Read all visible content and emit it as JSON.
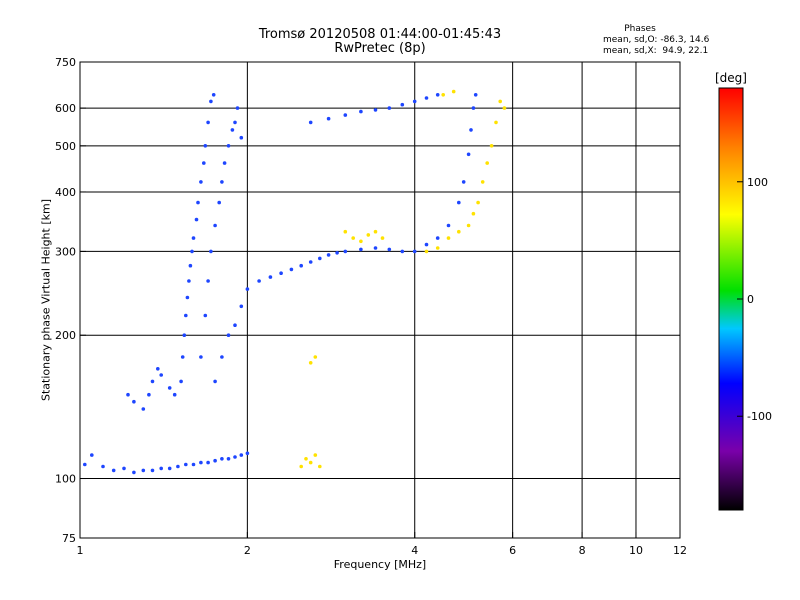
{
  "title": "Tromsø 20120508 01:44:00-01:45:43",
  "subtitle": "RwPretec (8p)",
  "phases": {
    "heading": "Phases",
    "o_line": "mean, sd,O: -86.3, 14.6",
    "x_line": "mean, sd,X:  94.9, 22.1"
  },
  "chart_data": {
    "type": "scatter",
    "title": "Tromsø 20120508 01:44:00-01:45:43",
    "subtitle": "RwPretec (8p)",
    "xlabel": "Frequency [MHz]",
    "ylabel": "Stationary phase Virtual Height [km]",
    "xscale": "log",
    "yscale": "log",
    "xlim": [
      1,
      12
    ],
    "ylim": [
      75,
      750
    ],
    "xticks": [
      1,
      2,
      4,
      6,
      8,
      10,
      12
    ],
    "yticks": [
      75,
      100,
      200,
      300,
      400,
      500,
      600,
      750
    ],
    "grid_x": [
      2,
      4,
      6,
      8,
      10
    ],
    "grid_y": [
      100,
      200,
      300,
      400,
      500,
      600
    ],
    "colorbar": {
      "label": "[deg]",
      "range": [
        -180,
        180
      ],
      "ticks": [
        -100,
        0,
        100
      ]
    },
    "series": [
      {
        "name": "O",
        "mean_phase": -86.3,
        "sd_phase": 14.6,
        "color": "#1e46ff",
        "points": [
          [
            1.02,
            107
          ],
          [
            1.05,
            112
          ],
          [
            1.1,
            106
          ],
          [
            1.15,
            104
          ],
          [
            1.2,
            105
          ],
          [
            1.25,
            103
          ],
          [
            1.3,
            104
          ],
          [
            1.35,
            104
          ],
          [
            1.4,
            105
          ],
          [
            1.45,
            105
          ],
          [
            1.5,
            106
          ],
          [
            1.55,
            107
          ],
          [
            1.6,
            107
          ],
          [
            1.65,
            108
          ],
          [
            1.7,
            108
          ],
          [
            1.75,
            109
          ],
          [
            1.8,
            110
          ],
          [
            1.85,
            110
          ],
          [
            1.9,
            111
          ],
          [
            1.95,
            112
          ],
          [
            2.0,
            113
          ],
          [
            1.22,
            150
          ],
          [
            1.25,
            145
          ],
          [
            1.3,
            140
          ],
          [
            1.33,
            150
          ],
          [
            1.35,
            160
          ],
          [
            1.38,
            170
          ],
          [
            1.4,
            165
          ],
          [
            1.45,
            155
          ],
          [
            1.48,
            150
          ],
          [
            1.52,
            160
          ],
          [
            1.53,
            180
          ],
          [
            1.54,
            200
          ],
          [
            1.55,
            220
          ],
          [
            1.56,
            240
          ],
          [
            1.57,
            260
          ],
          [
            1.58,
            280
          ],
          [
            1.59,
            300
          ],
          [
            1.6,
            320
          ],
          [
            1.62,
            350
          ],
          [
            1.63,
            380
          ],
          [
            1.65,
            420
          ],
          [
            1.67,
            460
          ],
          [
            1.68,
            500
          ],
          [
            1.7,
            560
          ],
          [
            1.72,
            620
          ],
          [
            1.74,
            640
          ],
          [
            1.65,
            180
          ],
          [
            1.68,
            220
          ],
          [
            1.7,
            260
          ],
          [
            1.72,
            300
          ],
          [
            1.75,
            340
          ],
          [
            1.78,
            380
          ],
          [
            1.8,
            420
          ],
          [
            1.82,
            460
          ],
          [
            1.85,
            500
          ],
          [
            1.88,
            540
          ],
          [
            1.9,
            560
          ],
          [
            1.92,
            600
          ],
          [
            1.95,
            520
          ],
          [
            1.75,
            160
          ],
          [
            1.8,
            180
          ],
          [
            1.85,
            200
          ],
          [
            1.9,
            210
          ],
          [
            1.95,
            230
          ],
          [
            2.0,
            250
          ],
          [
            2.1,
            260
          ],
          [
            2.2,
            265
          ],
          [
            2.3,
            270
          ],
          [
            2.4,
            275
          ],
          [
            2.5,
            280
          ],
          [
            2.6,
            285
          ],
          [
            2.7,
            290
          ],
          [
            2.8,
            295
          ],
          [
            2.9,
            298
          ],
          [
            3.0,
            300
          ],
          [
            3.2,
            303
          ],
          [
            3.4,
            305
          ],
          [
            3.6,
            303
          ],
          [
            3.8,
            300
          ],
          [
            4.0,
            300
          ],
          [
            2.6,
            560
          ],
          [
            2.8,
            570
          ],
          [
            3.0,
            580
          ],
          [
            3.2,
            590
          ],
          [
            3.4,
            595
          ],
          [
            3.6,
            600
          ],
          [
            3.8,
            610
          ],
          [
            4.0,
            620
          ],
          [
            4.2,
            630
          ],
          [
            4.4,
            640
          ],
          [
            4.2,
            310
          ],
          [
            4.4,
            320
          ],
          [
            4.6,
            340
          ],
          [
            4.8,
            380
          ],
          [
            4.9,
            420
          ],
          [
            5.0,
            480
          ],
          [
            5.05,
            540
          ],
          [
            5.1,
            600
          ],
          [
            5.15,
            640
          ]
        ]
      },
      {
        "name": "X",
        "mean_phase": 94.9,
        "sd_phase": 22.1,
        "color": "#ffe200",
        "points": [
          [
            2.5,
            106
          ],
          [
            2.55,
            110
          ],
          [
            2.6,
            108
          ],
          [
            2.65,
            112
          ],
          [
            2.7,
            106
          ],
          [
            2.6,
            175
          ],
          [
            2.65,
            180
          ],
          [
            3.0,
            330
          ],
          [
            3.1,
            320
          ],
          [
            3.2,
            315
          ],
          [
            3.3,
            325
          ],
          [
            3.4,
            330
          ],
          [
            3.5,
            320
          ],
          [
            4.2,
            300
          ],
          [
            4.4,
            305
          ],
          [
            4.6,
            320
          ],
          [
            4.8,
            330
          ],
          [
            5.0,
            340
          ],
          [
            5.1,
            360
          ],
          [
            5.2,
            380
          ],
          [
            5.3,
            420
          ],
          [
            5.4,
            460
          ],
          [
            5.5,
            500
          ],
          [
            5.6,
            560
          ],
          [
            5.7,
            620
          ],
          [
            4.5,
            640
          ],
          [
            4.7,
            650
          ],
          [
            5.8,
            600
          ]
        ]
      }
    ]
  }
}
